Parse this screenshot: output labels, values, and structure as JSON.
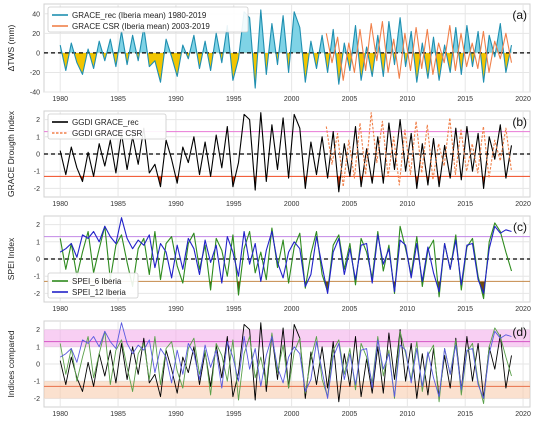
{
  "x_ticks": [
    "1980",
    "1985",
    "1990",
    "1995",
    "2000",
    "2005",
    "2010",
    "2015",
    "2020"
  ],
  "chart_data": [
    {
      "type": "area",
      "panel_label": "(a)",
      "ylabel": "ΔTWS (mm)",
      "ylim": [
        -40,
        50
      ],
      "xlim": [
        1978.6,
        2020.6
      ],
      "yticks": [
        "40",
        "20",
        "0",
        "-20",
        "-40"
      ],
      "ytick_values": [
        40,
        20,
        0,
        -20,
        -40
      ],
      "grid": true,
      "legend_position": "top-left",
      "reference_lines": [
        {
          "y": 0,
          "style": "dashed",
          "color": "#000000"
        }
      ],
      "fills": {
        "positive": "#7fd3e6",
        "negative": "#f2c500"
      },
      "series": [
        {
          "name": "GRACE_rec (Iberia mean) 1980-2019",
          "color": "#1f8fb0",
          "x_start": 1980,
          "x_end": 2019,
          "values": [
            8,
            -18,
            10,
            -10,
            -22,
            4,
            -16,
            12,
            -8,
            14,
            -14,
            22,
            -12,
            18,
            -8,
            26,
            -14,
            -8,
            -30,
            14,
            -4,
            -24,
            8,
            -6,
            18,
            -16,
            12,
            -18,
            20,
            -10,
            28,
            -28,
            -6,
            42,
            36,
            -36,
            44,
            -22,
            30,
            -12,
            38,
            -20,
            42,
            26,
            -30,
            12,
            -16,
            18,
            -20,
            24,
            -32,
            10,
            -18,
            28,
            -28,
            6,
            -24,
            18,
            -24,
            32,
            -12,
            36,
            -14,
            22,
            -30,
            10,
            -26,
            16,
            -28,
            8,
            -20,
            26,
            -22,
            28,
            -14,
            22,
            -30,
            18,
            -4,
            30,
            -20,
            8
          ]
        },
        {
          "name": "GRACE CSR (Iberia mean) 2003-2019",
          "color": "#f0804a",
          "x_start": 2003,
          "x_end": 2019,
          "values": [
            20,
            -10,
            16,
            -28,
            10,
            -20,
            24,
            -18,
            30,
            -8,
            32,
            -20,
            14,
            -26,
            20,
            -18,
            26,
            -16,
            24,
            -22,
            10,
            -10,
            28,
            -18,
            20,
            -14,
            10,
            -16,
            22,
            -20,
            12,
            -6,
            20,
            -10
          ]
        }
      ]
    },
    {
      "type": "line",
      "panel_label": "(b)",
      "ylabel": "GRACE Drougth Index",
      "ylim": [
        -2.5,
        2.5
      ],
      "xlim": [
        1978.6,
        2020.6
      ],
      "yticks": [
        "2",
        "1",
        "0",
        "-1",
        "-2"
      ],
      "ytick_values": [
        2,
        1,
        0,
        -1,
        -2
      ],
      "grid": true,
      "legend_position": "top-left",
      "reference_lines": [
        {
          "y": 0,
          "style": "dashed",
          "color": "#000000"
        },
        {
          "y": 1.3,
          "style": "solid",
          "color": "#e87ad6"
        },
        {
          "y": -1.3,
          "style": "solid",
          "color": "#f04a20"
        }
      ],
      "drought_fill": {
        "threshold": -1.3,
        "color": "#d83a10"
      },
      "series": [
        {
          "name": "GGDI GRACE_rec",
          "color": "#000000",
          "style": "solid",
          "x_start": 1980,
          "x_end": 2019,
          "values": [
            0.2,
            -1.2,
            0.4,
            -0.8,
            -1.6,
            0.1,
            -1.3,
            0.6,
            -0.7,
            0.8,
            -1.1,
            1.2,
            -0.9,
            1.0,
            -0.6,
            1.5,
            -1.1,
            -0.6,
            -1.9,
            0.8,
            -0.3,
            -1.7,
            0.4,
            -0.5,
            1.0,
            -1.2,
            0.7,
            -1.3,
            1.1,
            -0.8,
            1.6,
            -1.9,
            -0.5,
            2.3,
            2.0,
            -2.1,
            2.4,
            -1.6,
            1.7,
            -0.9,
            2.1,
            -1.4,
            2.3,
            1.5,
            -2.0,
            0.7,
            -1.2,
            1.0,
            -1.4,
            1.3,
            -2.2,
            0.6,
            -1.3,
            1.6,
            -1.9,
            0.3,
            -1.7,
            1.0,
            -1.7,
            1.8,
            -0.9,
            2.0,
            -1.0,
            1.2,
            -2.0,
            0.6,
            -1.8,
            0.9,
            -1.9,
            0.5,
            -1.4,
            1.5,
            -1.5,
            1.6,
            -1.0,
            1.2,
            -2.0,
            1.0,
            -0.3,
            1.7,
            -1.4,
            0.5
          ]
        },
        {
          "name": "GGDI GRACE CSR",
          "color": "#f0804a",
          "style": "dashed",
          "x_start": 2003,
          "x_end": 2019,
          "values": [
            1.6,
            -0.6,
            1.2,
            -1.9,
            0.8,
            -1.4,
            1.8,
            -1.2,
            2.4,
            -0.5,
            1.9,
            -1.3,
            1.0,
            -1.8,
            1.4,
            -1.2,
            1.9,
            -1.1,
            1.7,
            -1.5,
            0.6,
            -0.7,
            2.1,
            -1.2,
            1.4,
            -1.0,
            0.6,
            -1.1,
            1.6,
            -1.4,
            0.8,
            -0.4,
            1.5,
            -1.0
          ]
        }
      ]
    },
    {
      "type": "line",
      "panel_label": "(c)",
      "ylabel": "SPEI Index",
      "ylim": [
        -2.5,
        2.5
      ],
      "xlim": [
        1978.6,
        2020.6
      ],
      "yticks": [
        "2",
        "1",
        "0",
        "-1",
        "-2"
      ],
      "ytick_values": [
        2,
        1,
        0,
        -1,
        -2
      ],
      "grid": true,
      "legend_position": "bottom-left",
      "reference_lines": [
        {
          "y": 0,
          "style": "dashed",
          "color": "#000000"
        },
        {
          "y": 1.3,
          "style": "solid",
          "color": "#c28ae6"
        },
        {
          "y": -1.3,
          "style": "solid",
          "color": "#c48a4a"
        }
      ],
      "drought_fill": {
        "threshold": -1.3,
        "color": "#6e4a10"
      },
      "series": [
        {
          "name": "SPEI_6 Iberia",
          "color": "#2e8b1e",
          "x_start": 1980,
          "x_end": 2019,
          "values": [
            1.2,
            -0.6,
            0.9,
            -1.0,
            0.4,
            1.6,
            -0.8,
            0.6,
            1.9,
            -1.2,
            0.8,
            1.4,
            -0.2,
            -1.6,
            0.6,
            1.2,
            -0.9,
            1.6,
            -1.2,
            0.9,
            1.3,
            -0.4,
            -1.4,
            0.9,
            1.5,
            -0.6,
            0.8,
            -1.8,
            1.2,
            0.5,
            -1.0,
            1.4,
            -2.1,
            0.6,
            1.6,
            -0.8,
            0.4,
            -1.2,
            1.8,
            -0.5,
            1.1,
            -1.4,
            0.7,
            1.5,
            -1.7,
            0.3,
            1.6,
            -0.9,
            -1.9,
            0.8,
            1.4,
            -0.6,
            0.9,
            -1.5,
            1.2,
            0.4,
            -1.1,
            1.6,
            -0.7,
            0.8,
            -2.0,
            1.9,
            0.6,
            -0.9,
            1.3,
            -1.6,
            0.5,
            1.1,
            -2.2,
            0.9,
            -0.6,
            1.4,
            -1.8,
            0.7,
            1.2,
            -1.0,
            -2.3,
            1.0,
            2.1,
            1.6,
            0.4,
            -0.7
          ]
        },
        {
          "name": "SPEI_12 Iberia",
          "color": "#2222c8",
          "x_start": 1980,
          "x_end": 2019,
          "values": [
            0.4,
            0.6,
            0.9,
            0.1,
            1.4,
            1.2,
            1.6,
            1.0,
            1.9,
            1.3,
            0.9,
            2.4,
            1.2,
            0.6,
            1.1,
            0.8,
            1.4,
            -0.5,
            0.9,
            0.4,
            -1.1,
            0.8,
            -0.6,
            1.2,
            0.6,
            -0.9,
            1.1,
            -0.2,
            0.8,
            -1.4,
            1.3,
            0.4,
            -1.0,
            1.6,
            -0.3,
            0.9,
            -1.3,
            0.5,
            1.6,
            -0.2,
            -1.1,
            0.4,
            1.0,
            0.6,
            -1.6,
            -0.9,
            1.3,
            -0.4,
            -2.0,
            0.4,
            1.2,
            -0.9,
            0.6,
            -1.2,
            0.8,
            0.9,
            -1.4,
            1.4,
            -0.3,
            0.6,
            -1.9,
            1.1,
            0.8,
            -1.1,
            0.9,
            -1.3,
            0.7,
            -0.8,
            -1.9,
            0.9,
            -0.6,
            1.1,
            -1.5,
            0.8,
            0.9,
            -1.2,
            -2.0,
            0.6,
            1.9,
            1.5,
            1.7,
            1.6
          ]
        }
      ]
    },
    {
      "type": "line",
      "panel_label": "(d)",
      "ylabel": "Indices compared",
      "ylim": [
        -2.5,
        2.5
      ],
      "xlim": [
        1978.6,
        2020.6
      ],
      "yticks": [
        "2",
        "1",
        "0",
        "-1",
        "-2"
      ],
      "ytick_values": [
        2,
        1,
        0,
        -1,
        -2
      ],
      "grid": true,
      "reference_lines": [
        {
          "y": 1.3,
          "style": "solid",
          "color": "#d454c4"
        },
        {
          "y": -1.3,
          "style": "solid",
          "color": "#e8704a"
        }
      ],
      "bands": [
        {
          "from": 1.0,
          "to": 2.0,
          "color": "#f2a8ea"
        },
        {
          "from": -2.0,
          "to": -1.0,
          "color": "#f7c8a8"
        }
      ],
      "series": [
        {
          "name": "GGDI GRACE_rec",
          "color": "#000000",
          "x_start": 1980,
          "x_end": 2019,
          "same_as": "panel (b) GGDI GRACE_rec"
        },
        {
          "name": "SPEI_6 Iberia",
          "color": "#5aa04a",
          "x_start": 1980,
          "x_end": 2019,
          "same_as": "panel (c) SPEI_6 Iberia"
        },
        {
          "name": "SPEI_12 Iberia",
          "color": "#5a5ae0",
          "x_start": 1980,
          "x_end": 2019,
          "same_as": "panel (c) SPEI_12 Iberia"
        }
      ]
    }
  ]
}
